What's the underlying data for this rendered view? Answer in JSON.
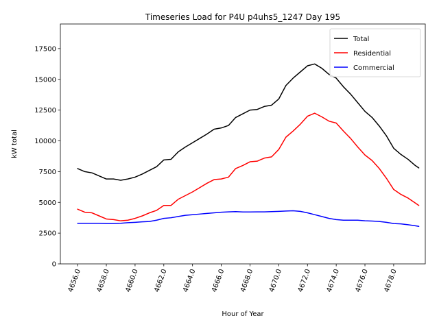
{
  "chart_data": {
    "type": "line",
    "title": "Timeseries Load for P4U p4uhs5_1247  Day 195",
    "xlabel": "Hour of Year",
    "ylabel": "kW total",
    "xlim": [
      4654.8,
      4680.2
    ],
    "ylim": [
      0,
      19500
    ],
    "xticks": [
      4656,
      4658,
      4660,
      4662,
      4664,
      4666,
      4668,
      4670,
      4672,
      4674,
      4676,
      4678
    ],
    "xtick_labels": [
      "4656.0",
      "4658.0",
      "4660.0",
      "4662.0",
      "4664.0",
      "4666.0",
      "4668.0",
      "4670.0",
      "4672.0",
      "4674.0",
      "4676.0",
      "4678.0"
    ],
    "yticks": [
      0,
      2500,
      5000,
      7500,
      10000,
      12500,
      15000,
      17500
    ],
    "ytick_labels": [
      "0",
      "2500",
      "5000",
      "7500",
      "10000",
      "12500",
      "15000",
      "17500"
    ],
    "legend_position": "upper-right",
    "x": [
      4656,
      4656.5,
      4657,
      4657.5,
      4658,
      4658.5,
      4659,
      4659.5,
      4660,
      4660.5,
      4661,
      4661.5,
      4662,
      4662.5,
      4663,
      4663.5,
      4664,
      4664.5,
      4665,
      4665.5,
      4666,
      4666.5,
      4667,
      4667.5,
      4668,
      4668.5,
      4669,
      4669.5,
      4670,
      4670.5,
      4671,
      4671.5,
      4672,
      4672.5,
      4673,
      4673.5,
      4674,
      4674.5,
      4675,
      4675.5,
      4676,
      4676.5,
      4677,
      4677.5,
      4678,
      4678.5,
      4679,
      4679.5,
      4679.75
    ],
    "series": [
      {
        "name": "Total",
        "color": "#000000",
        "values": [
          7750,
          7500,
          7400,
          7150,
          6900,
          6900,
          6800,
          6900,
          7050,
          7300,
          7600,
          7900,
          8450,
          8500,
          9100,
          9500,
          9850,
          10200,
          10550,
          10950,
          11050,
          11250,
          11900,
          12200,
          12500,
          12550,
          12800,
          12900,
          13400,
          14500,
          15100,
          15600,
          16100,
          16250,
          15900,
          15400,
          15100,
          14400,
          13800,
          13100,
          12400,
          11900,
          11200,
          10400,
          9400,
          8900,
          8500,
          8000,
          7800
        ]
      },
      {
        "name": "Residential",
        "color": "#ff0000",
        "values": [
          4450,
          4200,
          4150,
          3900,
          3650,
          3600,
          3500,
          3550,
          3700,
          3900,
          4150,
          4350,
          4750,
          4750,
          5250,
          5550,
          5850,
          6200,
          6550,
          6850,
          6900,
          7050,
          7750,
          8000,
          8300,
          8350,
          8600,
          8700,
          9300,
          10300,
          10800,
          11350,
          12000,
          12250,
          11950,
          11600,
          11450,
          10800,
          10200,
          9500,
          8850,
          8400,
          7750,
          6950,
          6050,
          5650,
          5350,
          4950,
          4750
        ]
      },
      {
        "name": "Commercial",
        "color": "#0000ff",
        "values": [
          3300,
          3300,
          3300,
          3300,
          3280,
          3280,
          3300,
          3350,
          3380,
          3420,
          3450,
          3550,
          3700,
          3750,
          3850,
          3950,
          4000,
          4050,
          4100,
          4150,
          4200,
          4230,
          4250,
          4220,
          4220,
          4230,
          4230,
          4250,
          4270,
          4300,
          4320,
          4270,
          4150,
          4000,
          3850,
          3700,
          3600,
          3550,
          3550,
          3550,
          3500,
          3480,
          3450,
          3380,
          3280,
          3250,
          3180,
          3100,
          3050
        ]
      }
    ]
  }
}
